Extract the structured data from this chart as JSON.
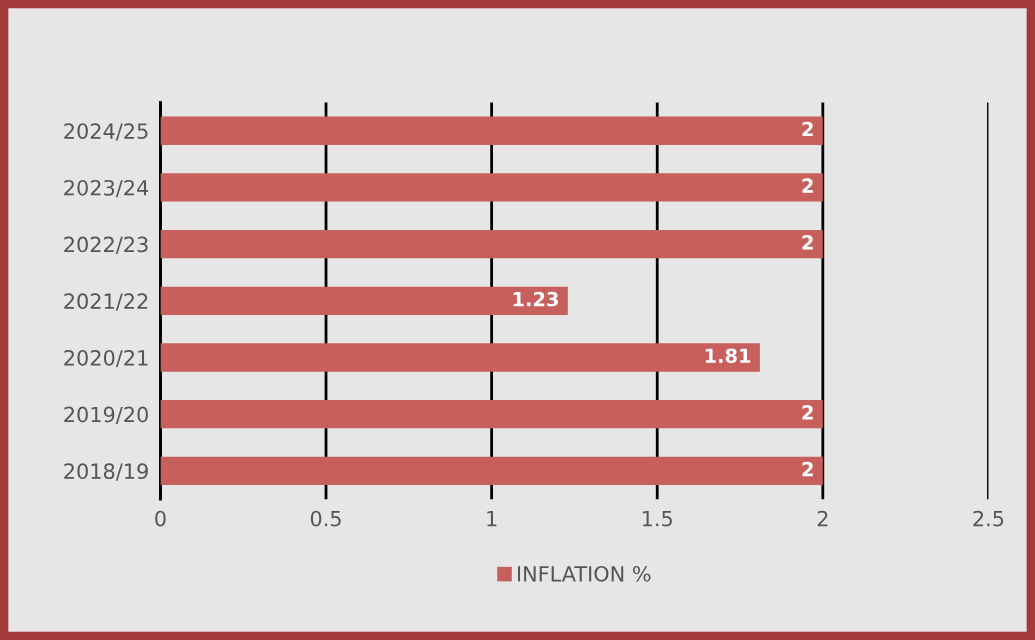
{
  "chart_data": {
    "type": "bar",
    "orientation": "horizontal",
    "categories": [
      "2024/25",
      "2023/24",
      "2022/23",
      "2021/22",
      "2020/21",
      "2019/20",
      "2018/19"
    ],
    "series": [
      {
        "name": "INFLATION %",
        "color": "#c75f5d",
        "values": [
          2,
          2,
          2,
          1.23,
          1.81,
          2,
          2
        ]
      }
    ],
    "xlim": [
      0,
      2.5
    ],
    "xticks": [
      0,
      0.5,
      1,
      1.5,
      2,
      2.5
    ],
    "grid": "x",
    "legend": "bottom",
    "data_labels": true
  }
}
